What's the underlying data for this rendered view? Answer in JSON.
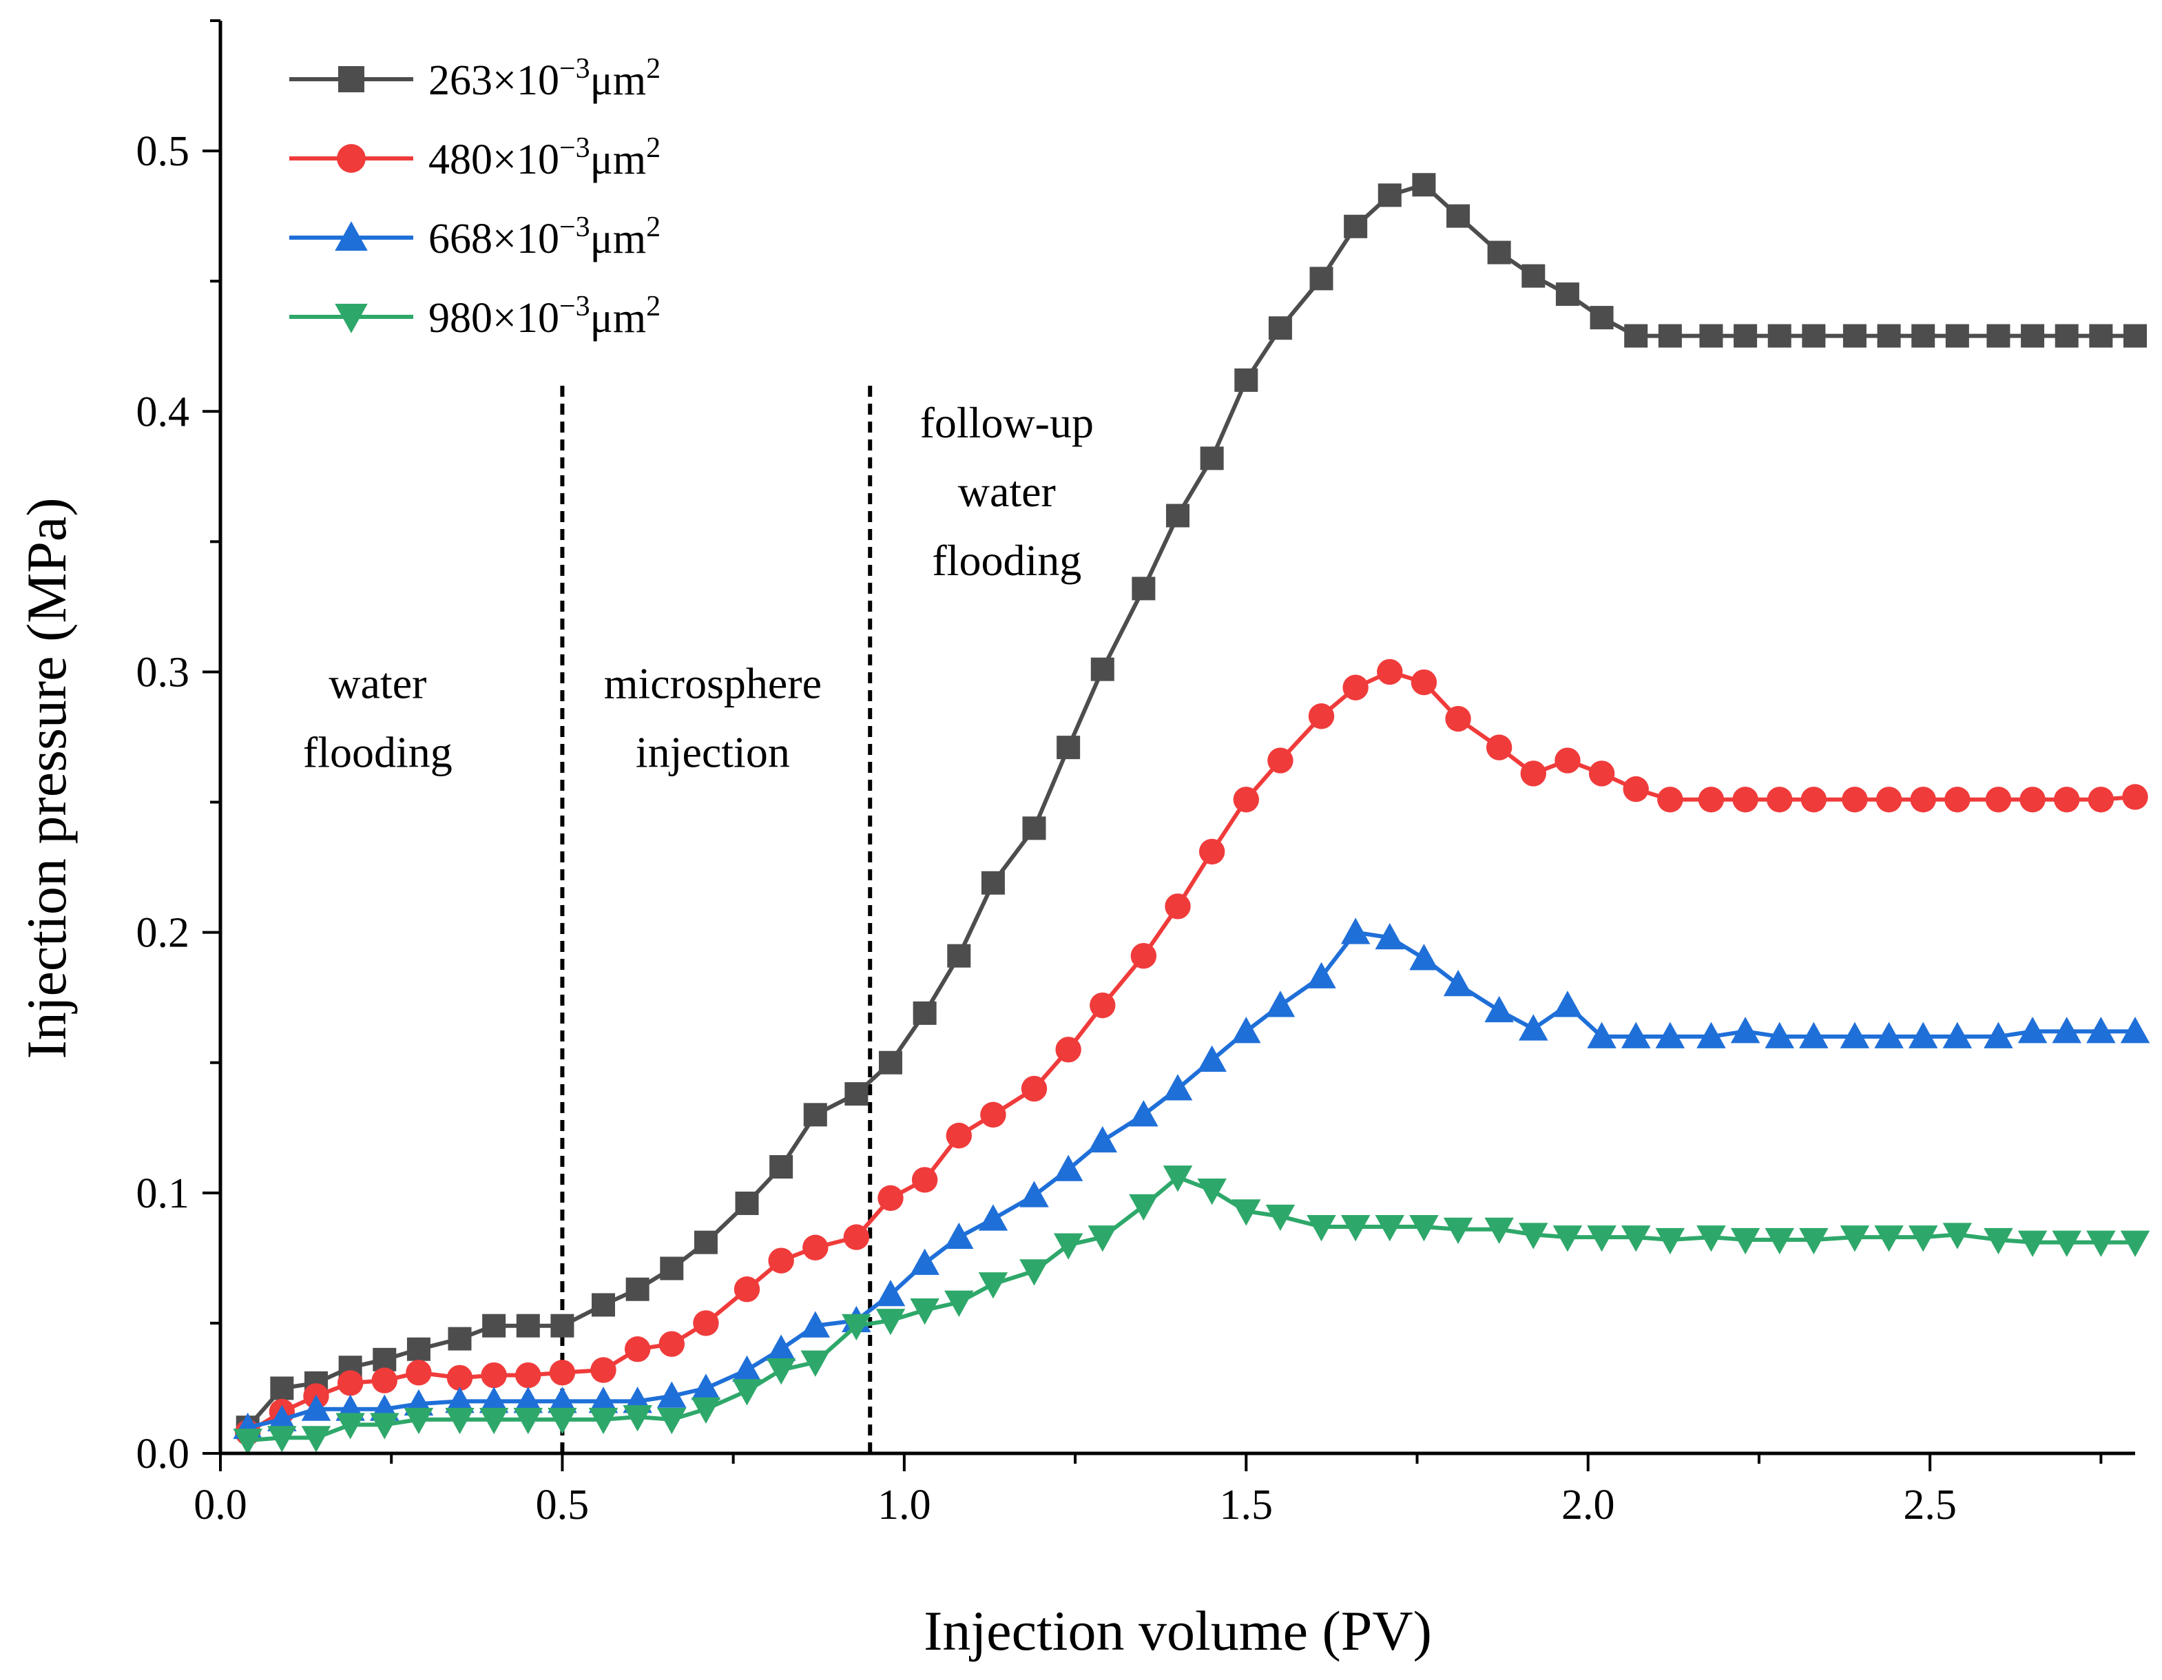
{
  "chart_data": {
    "type": "line",
    "title": "",
    "xlabel": "Injection volume (PV)",
    "ylabel": "Injection pressure (MPa)",
    "xlim": [
      0.0,
      2.8
    ],
    "ylim": [
      0.0,
      0.55
    ],
    "xticks": [
      "0.0",
      "0.5",
      "1.0",
      "1.5",
      "2.0",
      "2.5"
    ],
    "yticks": [
      "0.0",
      "0.1",
      "0.2",
      "0.3",
      "0.4",
      "0.5"
    ],
    "grid": false,
    "legend_position": "top-left",
    "stage_boundaries": [
      0.5,
      0.95
    ],
    "annotations": [
      {
        "lines": [
          "water",
          "flooding"
        ],
        "x": 0.23,
        "y": 0.29
      },
      {
        "lines": [
          "microsphere",
          "injection"
        ],
        "x": 0.72,
        "y": 0.29
      },
      {
        "lines": [
          "follow-up",
          "water",
          "flooding"
        ],
        "x": 1.15,
        "y": 0.39
      }
    ],
    "series": [
      {
        "name_base": "263×10",
        "name_exp": "−3",
        "name_unit": "μm",
        "name_unit_exp": "2",
        "color": "#4d4d4d",
        "marker": "square",
        "x": [
          0.04,
          0.09,
          0.14,
          0.19,
          0.24,
          0.29,
          0.35,
          0.4,
          0.45,
          0.5,
          0.56,
          0.61,
          0.66,
          0.71,
          0.77,
          0.82,
          0.87,
          0.93,
          0.98,
          1.03,
          1.08,
          1.13,
          1.19,
          1.24,
          1.29,
          1.35,
          1.4,
          1.45,
          1.5,
          1.55,
          1.61,
          1.66,
          1.71,
          1.76,
          1.81,
          1.87,
          1.92,
          1.97,
          2.02,
          2.07,
          2.12,
          2.18,
          2.23,
          2.28,
          2.33,
          2.39,
          2.44,
          2.49,
          2.54,
          2.6,
          2.65,
          2.7,
          2.75,
          2.8
        ],
        "y": [
          0.01,
          0.025,
          0.027,
          0.033,
          0.036,
          0.04,
          0.044,
          0.049,
          0.049,
          0.049,
          0.057,
          0.063,
          0.071,
          0.081,
          0.096,
          0.11,
          0.13,
          0.138,
          0.15,
          0.169,
          0.191,
          0.219,
          0.24,
          0.271,
          0.301,
          0.332,
          0.36,
          0.382,
          0.412,
          0.432,
          0.451,
          0.471,
          0.483,
          0.487,
          0.475,
          0.461,
          0.452,
          0.445,
          0.436,
          0.429,
          0.429,
          0.429,
          0.429,
          0.429,
          0.429,
          0.429,
          0.429,
          0.429,
          0.429,
          0.429,
          0.429,
          0.429,
          0.429,
          0.429
        ]
      },
      {
        "name_base": "480×10",
        "name_exp": "−3",
        "name_unit": "μm",
        "name_unit_exp": "2",
        "color": "#f03b3b",
        "marker": "circle",
        "x": [
          0.04,
          0.09,
          0.14,
          0.19,
          0.24,
          0.29,
          0.35,
          0.4,
          0.45,
          0.5,
          0.56,
          0.61,
          0.66,
          0.71,
          0.77,
          0.82,
          0.87,
          0.93,
          0.98,
          1.03,
          1.08,
          1.13,
          1.19,
          1.24,
          1.29,
          1.35,
          1.4,
          1.45,
          1.5,
          1.55,
          1.61,
          1.66,
          1.71,
          1.76,
          1.81,
          1.87,
          1.92,
          1.97,
          2.02,
          2.07,
          2.12,
          2.18,
          2.23,
          2.28,
          2.33,
          2.39,
          2.44,
          2.49,
          2.54,
          2.6,
          2.65,
          2.7,
          2.75,
          2.8
        ],
        "y": [
          0.008,
          0.016,
          0.022,
          0.027,
          0.028,
          0.031,
          0.029,
          0.03,
          0.03,
          0.031,
          0.032,
          0.04,
          0.042,
          0.05,
          0.063,
          0.074,
          0.079,
          0.083,
          0.098,
          0.105,
          0.122,
          0.13,
          0.14,
          0.155,
          0.172,
          0.191,
          0.21,
          0.231,
          0.251,
          0.266,
          0.283,
          0.294,
          0.3,
          0.296,
          0.282,
          0.271,
          0.261,
          0.266,
          0.261,
          0.255,
          0.251,
          0.251,
          0.251,
          0.251,
          0.251,
          0.251,
          0.251,
          0.251,
          0.251,
          0.251,
          0.251,
          0.251,
          0.251,
          0.252
        ]
      },
      {
        "name_base": "668×10",
        "name_exp": "−3",
        "name_unit": "μm",
        "name_unit_exp": "2",
        "color": "#1f6fd8",
        "marker": "triangle-up",
        "x": [
          0.04,
          0.09,
          0.14,
          0.19,
          0.24,
          0.29,
          0.35,
          0.4,
          0.45,
          0.5,
          0.56,
          0.61,
          0.66,
          0.71,
          0.77,
          0.82,
          0.87,
          0.93,
          0.98,
          1.03,
          1.08,
          1.13,
          1.19,
          1.24,
          1.29,
          1.35,
          1.4,
          1.45,
          1.5,
          1.55,
          1.61,
          1.66,
          1.71,
          1.76,
          1.81,
          1.87,
          1.92,
          1.97,
          2.02,
          2.07,
          2.12,
          2.18,
          2.23,
          2.28,
          2.33,
          2.39,
          2.44,
          2.49,
          2.54,
          2.6,
          2.65,
          2.7,
          2.75,
          2.8
        ],
        "y": [
          0.01,
          0.013,
          0.017,
          0.017,
          0.017,
          0.019,
          0.02,
          0.02,
          0.02,
          0.02,
          0.02,
          0.02,
          0.022,
          0.025,
          0.032,
          0.04,
          0.049,
          0.051,
          0.061,
          0.073,
          0.083,
          0.09,
          0.099,
          0.109,
          0.12,
          0.13,
          0.14,
          0.151,
          0.162,
          0.172,
          0.183,
          0.2,
          0.198,
          0.19,
          0.18,
          0.17,
          0.163,
          0.172,
          0.16,
          0.16,
          0.16,
          0.16,
          0.162,
          0.16,
          0.16,
          0.16,
          0.16,
          0.16,
          0.16,
          0.16,
          0.162,
          0.162,
          0.162,
          0.162
        ]
      },
      {
        "name_base": "980×10",
        "name_exp": "−3",
        "name_unit": "μm",
        "name_unit_exp": "2",
        "color": "#2ea86a",
        "marker": "triangle-down",
        "x": [
          0.04,
          0.09,
          0.14,
          0.19,
          0.24,
          0.29,
          0.35,
          0.4,
          0.45,
          0.5,
          0.56,
          0.61,
          0.66,
          0.71,
          0.77,
          0.82,
          0.87,
          0.93,
          0.98,
          1.03,
          1.08,
          1.13,
          1.19,
          1.24,
          1.29,
          1.35,
          1.4,
          1.45,
          1.5,
          1.55,
          1.61,
          1.66,
          1.71,
          1.76,
          1.81,
          1.87,
          1.92,
          1.97,
          2.02,
          2.07,
          2.12,
          2.18,
          2.23,
          2.28,
          2.33,
          2.39,
          2.44,
          2.49,
          2.54,
          2.6,
          2.65,
          2.7,
          2.75,
          2.8
        ],
        "y": [
          0.005,
          0.006,
          0.006,
          0.011,
          0.011,
          0.013,
          0.013,
          0.013,
          0.013,
          0.013,
          0.013,
          0.014,
          0.013,
          0.017,
          0.024,
          0.032,
          0.035,
          0.049,
          0.051,
          0.055,
          0.058,
          0.065,
          0.07,
          0.08,
          0.083,
          0.095,
          0.106,
          0.101,
          0.093,
          0.091,
          0.087,
          0.087,
          0.087,
          0.087,
          0.086,
          0.086,
          0.084,
          0.083,
          0.083,
          0.083,
          0.082,
          0.083,
          0.082,
          0.082,
          0.082,
          0.083,
          0.083,
          0.083,
          0.084,
          0.082,
          0.081,
          0.081,
          0.081,
          0.081
        ]
      }
    ]
  }
}
